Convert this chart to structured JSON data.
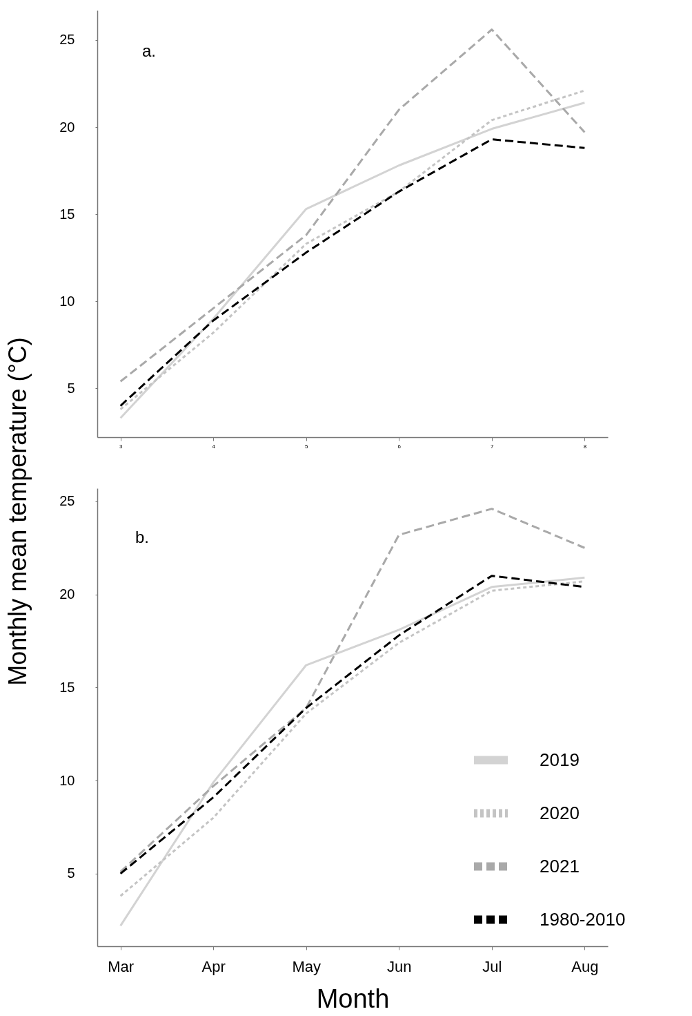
{
  "chart_data": [
    {
      "type": "line",
      "annotations": [
        "a."
      ],
      "categories": [
        "3",
        "4",
        "5",
        "6",
        "7",
        "8"
      ],
      "ylabel": "Monthly mean temperature (°C)",
      "ylim": [
        2.2,
        26.7
      ],
      "yticks": [
        5,
        10,
        15,
        20,
        25
      ],
      "grid": false,
      "series": [
        {
          "color": "#d3d3d3",
          "line_style": "solid",
          "values": [
            3.3,
            9.0,
            15.3,
            17.8,
            19.9,
            21.4
          ]
        },
        {
          "color": "#c4c4c4",
          "line_style": "dotted",
          "values": [
            3.8,
            8.2,
            13.3,
            16.3,
            20.4,
            22.1
          ]
        },
        {
          "color": "#a9a9a9",
          "line_style": "dashed",
          "values": [
            5.4,
            9.6,
            13.8,
            21.0,
            25.6,
            19.7
          ]
        },
        {
          "color": "#000000",
          "line_style": "dashed",
          "values": [
            4.0,
            8.9,
            12.8,
            16.3,
            19.3,
            18.8
          ]
        }
      ]
    },
    {
      "type": "line",
      "annotations": [
        "b."
      ],
      "categories": [
        "Mar",
        "Apr",
        "May",
        "Jun",
        "Jul",
        "Aug"
      ],
      "xlabel": "Month",
      "ylim": [
        1.1,
        25.7
      ],
      "yticks": [
        5,
        10,
        15,
        20,
        25
      ],
      "grid": false,
      "legend": "bottom right",
      "series": [
        {
          "name": "2019",
          "color": "#d3d3d3",
          "line_style": "solid",
          "values": [
            2.2,
            9.9,
            16.2,
            18.1,
            20.4,
            20.9
          ]
        },
        {
          "name": "2020",
          "color": "#c4c4c4",
          "line_style": "dotted",
          "values": [
            3.8,
            8.0,
            13.6,
            17.4,
            20.2,
            20.7
          ]
        },
        {
          "name": "2021",
          "color": "#a9a9a9",
          "line_style": "dashed",
          "values": [
            5.1,
            9.7,
            13.9,
            23.2,
            24.6,
            22.5
          ]
        },
        {
          "name": "1980-2010",
          "color": "#000000",
          "line_style": "dashed",
          "values": [
            5.0,
            9.1,
            13.9,
            17.8,
            21.0,
            20.4
          ]
        }
      ]
    }
  ]
}
